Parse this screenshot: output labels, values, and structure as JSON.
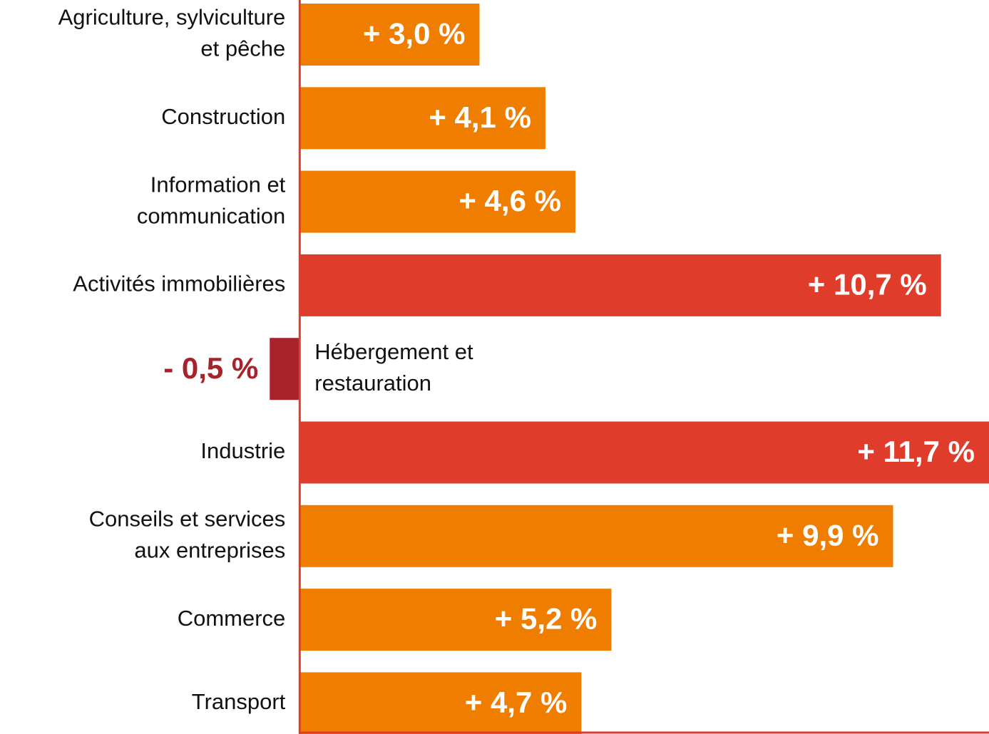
{
  "chart_data": {
    "type": "bar",
    "orientation": "horizontal",
    "categories": [
      [
        "Agriculture, sylviculture",
        "et pêche"
      ],
      [
        "Construction"
      ],
      [
        "Information et",
        "communication"
      ],
      [
        "Activités immobilières"
      ],
      [
        "Hébergement et",
        "restauration"
      ],
      [
        "Industrie"
      ],
      [
        "Conseils et services",
        "aux entreprises"
      ],
      [
        "Commerce"
      ],
      [
        "Transport"
      ]
    ],
    "values": [
      3.0,
      4.1,
      4.6,
      10.7,
      -0.5,
      11.7,
      9.9,
      5.2,
      4.7
    ],
    "value_labels": [
      "+ 3,0 %",
      "+ 4,1 %",
      "+ 4,6 %",
      "+ 10,7 %",
      "- 0,5 %",
      "+ 11,7 %",
      "+ 9,9 %",
      "+ 5,2 %",
      "+ 4,7 %"
    ],
    "colors": [
      "#ef7d00",
      "#ef7d00",
      "#ef7d00",
      "#e03c2b",
      "#a6232c",
      "#e03c2b",
      "#ef7d00",
      "#ef7d00",
      "#ef7d00"
    ],
    "xlim": [
      -5,
      11.5
    ]
  }
}
